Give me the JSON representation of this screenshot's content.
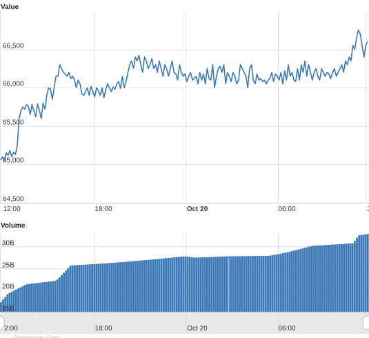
{
  "chart_data": [
    {
      "type": "line",
      "title": "",
      "ylabel": "Value",
      "ylim": [
        64500,
        67000
      ],
      "y_ticks": [
        "64,500",
        "65,000",
        "65,500",
        "66,000",
        "66,500"
      ],
      "x_ticks": [
        "12:00",
        "18:00",
        "Oct 20",
        "06:00",
        "J"
      ],
      "grid": true,
      "color": "#3a79b5",
      "series": [
        {
          "values": [
            65060,
            65100,
            65050,
            65150,
            65120,
            65180,
            65100,
            65160,
            65130,
            65250,
            65600,
            65700,
            65750,
            65720,
            65780,
            65760,
            65650,
            65780,
            65700,
            65620,
            65790,
            65700,
            65600,
            65800,
            65720,
            65900,
            66000,
            65980,
            65850,
            66000,
            66150,
            66150,
            66300,
            66250,
            66200,
            66180,
            66150,
            66200,
            66120,
            66150,
            66100,
            66000,
            66100,
            66050,
            65920,
            65900,
            65950,
            66000,
            65900,
            66020,
            65950,
            65880,
            66000,
            65960,
            65900,
            66000,
            65870,
            65980,
            66050,
            66000,
            65950,
            66010,
            65980,
            66050,
            66080,
            65990,
            66150,
            66000,
            66080,
            66200,
            66300,
            66350,
            66250,
            66400,
            66350,
            66420,
            66300,
            66200,
            66400,
            66350,
            66250,
            66300,
            66380,
            66250,
            66300,
            66200,
            66350,
            66250,
            66150,
            66300,
            66250,
            66150,
            66250,
            66350,
            66200,
            66180,
            66100,
            66300,
            66200,
            66150,
            66180,
            66080,
            66150,
            66200,
            66100,
            66120,
            66150,
            66050,
            66200,
            66100,
            66180,
            66050,
            66250,
            66120,
            66100,
            66300,
            66000,
            66150,
            66250,
            66280,
            66200,
            66300,
            66050,
            66200,
            66150,
            66080,
            66200,
            66150,
            66050,
            66100,
            66300,
            66250,
            66200,
            66150,
            66000,
            66250,
            66300,
            66100,
            66050,
            66180,
            66100,
            66120,
            66080,
            66100,
            66050,
            66100,
            66120,
            66200,
            66080,
            66180,
            66150,
            66100,
            66200,
            66050,
            66220,
            66100,
            66300,
            66150,
            66200,
            66100,
            66080,
            66250,
            66100,
            66300,
            66200,
            66350,
            66150,
            66300,
            66200,
            66100,
            66200,
            66250,
            66150,
            66100,
            66250,
            66200,
            66150,
            66200,
            66180,
            66120,
            66200,
            66250,
            66150,
            66200,
            66250,
            66300,
            66200,
            66350,
            66300,
            66400,
            66350,
            66550,
            66500,
            66650,
            66750,
            66700,
            66550,
            66400,
            66550,
            66600
          ]
        }
      ]
    },
    {
      "type": "bar",
      "title": "",
      "ylabel": "Volume",
      "ylim": [
        15000000000,
        33000000000
      ],
      "y_ticks": [
        "15B",
        "20B",
        "25B",
        "30B"
      ],
      "x_ticks": [
        "12:00",
        "18:00",
        "Oct 20",
        "06:00"
      ],
      "grid": true,
      "color": "#3a79b5",
      "keypoints": [
        [
          0,
          17200000000
        ],
        [
          0.02,
          19200000000
        ],
        [
          0.07,
          21300000000
        ],
        [
          0.15,
          22100000000
        ],
        [
          0.17,
          23800000000
        ],
        [
          0.19,
          25600000000
        ],
        [
          0.27,
          26000000000
        ],
        [
          0.35,
          26500000000
        ],
        [
          0.43,
          27100000000
        ],
        [
          0.5,
          27700000000
        ],
        [
          0.53,
          27400000000
        ],
        [
          0.62,
          27700000000
        ],
        [
          0.73,
          27800000000
        ],
        [
          0.78,
          28600000000
        ],
        [
          0.85,
          30100000000
        ],
        [
          0.93,
          30500000000
        ],
        [
          0.96,
          30700000000
        ],
        [
          0.975,
          32500000000
        ],
        [
          1,
          32800000000
        ]
      ]
    }
  ],
  "navigator": {
    "labels": [
      "2:00",
      "18:00",
      "Oct 20",
      "06:00"
    ],
    "footer": "Stockstream Chart"
  }
}
